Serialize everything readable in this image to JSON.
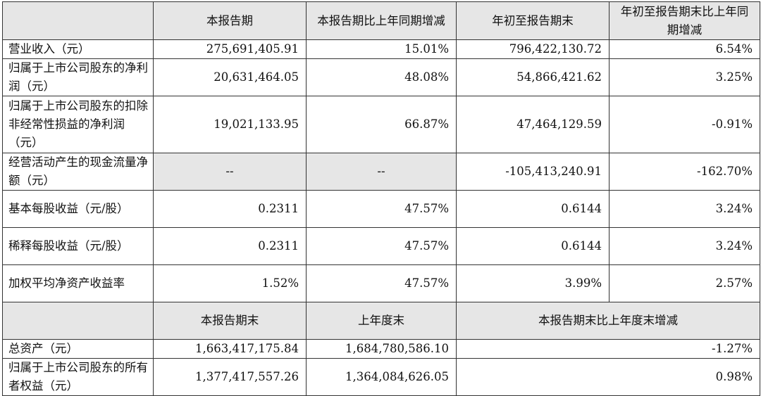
{
  "header": {
    "blank": "",
    "c1": "本报告期",
    "c2": "本报告期比上年同期增减",
    "c3": "年初至报告期末",
    "c4": "年初至报告期末比上年同期增减"
  },
  "rows": [
    {
      "label": "营业收入（元）",
      "v1": "275,691,405.91",
      "v2": "15.01%",
      "v3": "796,422,130.72",
      "v4": "6.54%"
    },
    {
      "label": "归属于上市公司股东的净利润（元）",
      "v1": "20,631,464.05",
      "v2": "48.08%",
      "v3": "54,866,421.62",
      "v4": "3.25%"
    },
    {
      "label": "归属于上市公司股东的扣除非经常性损益的净利润（元）",
      "v1": "19,021,133.95",
      "v2": "66.87%",
      "v3": "47,464,129.59",
      "v4": "-0.91%"
    },
    {
      "label": "经营活动产生的现金流量净额（元）",
      "v1": "--",
      "v2": "--",
      "v3": "-105,413,240.91",
      "v4": "-162.70%"
    },
    {
      "label": "基本每股收益（元/股）",
      "v1": "0.2311",
      "v2": "47.57%",
      "v3": "0.6144",
      "v4": "3.24%"
    },
    {
      "label": "稀释每股收益（元/股）",
      "v1": "0.2311",
      "v2": "47.57%",
      "v3": "0.6144",
      "v4": "3.24%"
    },
    {
      "label": "加权平均净资产收益率",
      "v1": "1.52%",
      "v2": "47.57%",
      "v3": "3.99%",
      "v4": "2.57%"
    }
  ],
  "header2": {
    "blank": "",
    "c1": "本报告期末",
    "c2": "上年度末",
    "c3": "本报告期末比上年度末增减"
  },
  "rows2": [
    {
      "label": "总资产（元）",
      "v1": "1,663,417,175.84",
      "v2": "1,684,780,586.10",
      "v3": "-1.27%"
    },
    {
      "label": "归属于上市公司股东的所有者权益（元）",
      "v1": "1,377,417,557.26",
      "v2": "1,364,084,626.05",
      "v3": "0.98%"
    }
  ]
}
